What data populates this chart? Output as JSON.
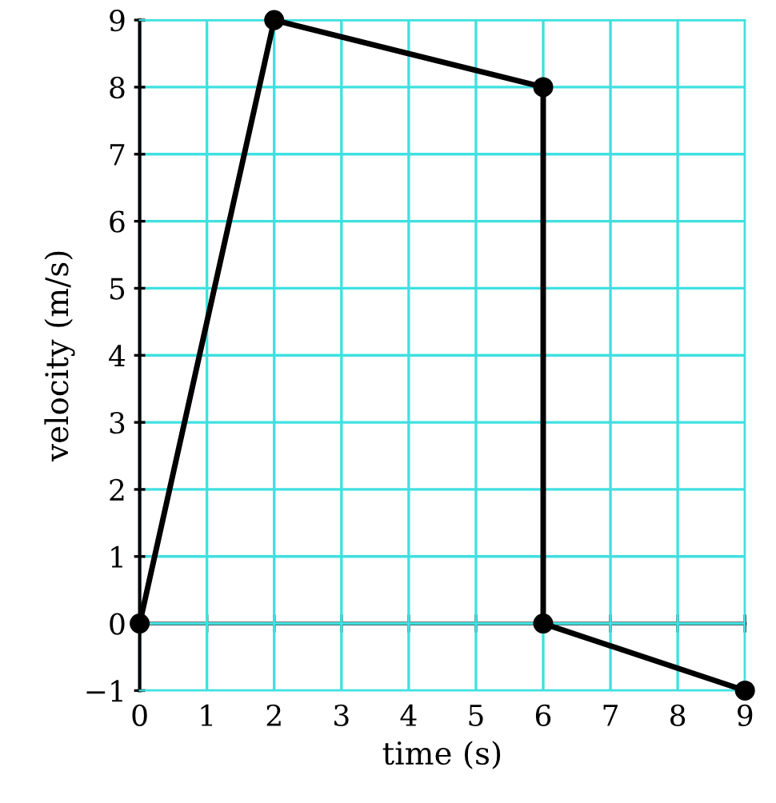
{
  "chart_data": {
    "type": "line",
    "xlabel": "time (s)",
    "ylabel": "velocity (m/s)",
    "x": [
      0,
      2,
      6,
      6,
      9
    ],
    "series": [
      {
        "color": "#000000",
        "values": [
          0,
          9,
          8,
          0,
          -1
        ]
      }
    ],
    "xlim": [
      0,
      9
    ],
    "ylim": [
      -1,
      9
    ],
    "xticks": [
      0,
      1,
      2,
      3,
      4,
      5,
      6,
      7,
      8,
      9
    ],
    "yticks": [
      {
        "value": -1,
        "label": "−1"
      },
      0,
      1,
      2,
      3,
      4,
      5,
      6,
      7,
      8,
      9
    ],
    "grid": true,
    "marker": "circle",
    "line_style": "solid"
  }
}
